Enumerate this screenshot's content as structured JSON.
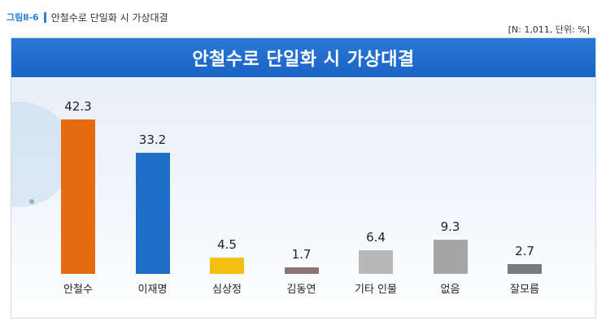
{
  "figure": {
    "number": "그림Ⅱ-6",
    "caption": "안철수로 단일화 시 가상대결",
    "note": "[N: 1,011, 단위: %]"
  },
  "chart_data": {
    "type": "bar",
    "title": "안철수로 단일화 시 가상대결",
    "categories": [
      "안철수",
      "이재명",
      "심상정",
      "김동연",
      "기타 인물",
      "없음",
      "잘모름"
    ],
    "values": [
      42.3,
      33.2,
      4.5,
      1.7,
      6.4,
      9.3,
      2.7
    ],
    "value_labels": [
      "42.3",
      "33.2",
      "4.5",
      "1.7",
      "6.4",
      "9.3",
      "2.7"
    ],
    "colors": [
      "#e56a10",
      "#1f6fc6",
      "#f5bf12",
      "#8a7678",
      "#b8b8b8",
      "#a6a6a6",
      "#7b7b7b"
    ],
    "xlabel": "",
    "ylabel": "",
    "ylim": [
      0,
      50
    ],
    "grid": false,
    "legend": "none"
  }
}
